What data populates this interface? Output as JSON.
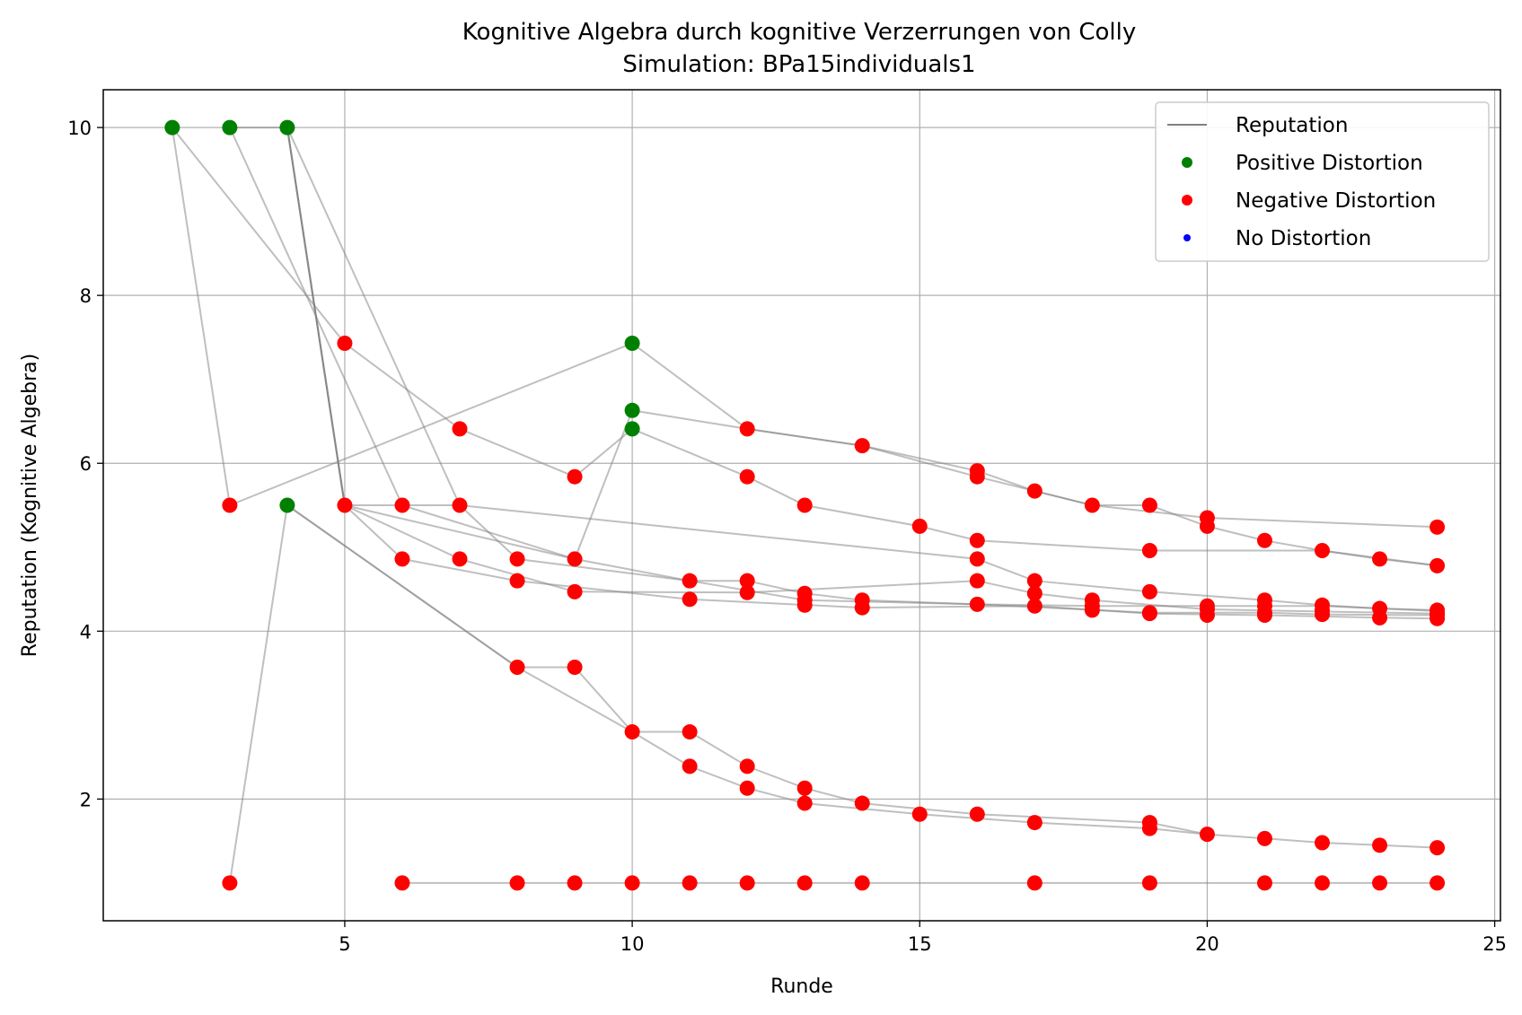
{
  "chart_data": {
    "type": "line",
    "title": "Kognitive Algebra durch kognitive Verzerrungen von Colly",
    "subtitle": "Simulation: BPa15individuals1",
    "xlabel": "Runde",
    "ylabel": "Reputation (Kognitive Algebra)",
    "xlim": [
      0.8,
      25.1
    ],
    "ylim": [
      0.55,
      10.45
    ],
    "xticks": [
      5,
      10,
      15,
      20,
      25
    ],
    "yticks": [
      2,
      4,
      6,
      8,
      10
    ],
    "grid": true,
    "legend_position": "top-right",
    "legend": [
      {
        "label": "Reputation",
        "kind": "line",
        "color": "#808080"
      },
      {
        "label": "Positive Distortion",
        "kind": "marker",
        "color": "#008000"
      },
      {
        "label": "Negative Distortion",
        "kind": "marker",
        "color": "#ff0000"
      },
      {
        "label": "No Distortion",
        "kind": "marker",
        "color": "#0000ff"
      }
    ],
    "colors": {
      "line": "#808080",
      "positive": "#008000",
      "negative": "#ff0000",
      "none": "#0000ff"
    },
    "lines": [
      [
        [
          2,
          10
        ],
        [
          5,
          7.43
        ],
        [
          7,
          6.41
        ],
        [
          9,
          5.84
        ],
        [
          10,
          6.41
        ],
        [
          12,
          5.84
        ],
        [
          13,
          5.5
        ],
        [
          15,
          5.25
        ],
        [
          16,
          5.08
        ],
        [
          19,
          4.96
        ],
        [
          22,
          4.96
        ],
        [
          24,
          4.78
        ]
      ],
      [
        [
          2,
          10
        ],
        [
          3,
          5.5
        ],
        [
          10,
          7.43
        ],
        [
          12,
          6.41
        ],
        [
          14,
          6.21
        ],
        [
          16,
          5.91
        ],
        [
          17,
          5.67
        ],
        [
          18,
          5.5
        ],
        [
          19,
          5.5
        ],
        [
          20,
          5.25
        ],
        [
          21,
          5.08
        ],
        [
          22,
          4.96
        ],
        [
          23,
          4.86
        ],
        [
          24,
          4.78
        ]
      ],
      [
        [
          3,
          10
        ],
        [
          4,
          10
        ],
        [
          5,
          5.5
        ],
        [
          9,
          4.86
        ],
        [
          10,
          6.63
        ],
        [
          12,
          6.41
        ],
        [
          14,
          6.21
        ],
        [
          16,
          5.84
        ],
        [
          18,
          5.5
        ],
        [
          20,
          5.35
        ],
        [
          24,
          5.24
        ]
      ],
      [
        [
          3,
          10
        ],
        [
          6,
          5.5
        ],
        [
          9,
          4.86
        ],
        [
          11,
          4.6
        ],
        [
          12,
          4.6
        ],
        [
          13,
          4.45
        ],
        [
          14,
          4.37
        ],
        [
          16,
          4.32
        ],
        [
          18,
          4.3
        ],
        [
          20,
          4.3
        ],
        [
          22,
          4.3
        ],
        [
          24,
          4.24
        ]
      ],
      [
        [
          4,
          10
        ],
        [
          7,
          5.5
        ],
        [
          8,
          4.86
        ],
        [
          11,
          4.6
        ],
        [
          13,
          4.37
        ],
        [
          16,
          4.32
        ],
        [
          19,
          4.22
        ],
        [
          21,
          4.22
        ],
        [
          22,
          4.2
        ],
        [
          24,
          4.19
        ]
      ],
      [
        [
          4,
          10
        ],
        [
          5,
          5.5
        ],
        [
          6,
          4.86
        ],
        [
          8,
          4.6
        ],
        [
          11,
          4.38
        ],
        [
          14,
          4.28
        ],
        [
          17,
          4.3
        ],
        [
          19,
          4.21
        ],
        [
          21,
          4.19
        ],
        [
          23,
          4.16
        ],
        [
          24,
          4.15
        ]
      ],
      [
        [
          4,
          10
        ],
        [
          5,
          5.5
        ],
        [
          7,
          5.5
        ],
        [
          16,
          4.86
        ],
        [
          17,
          4.6
        ],
        [
          19,
          4.47
        ],
        [
          21,
          4.37
        ],
        [
          22,
          4.31
        ],
        [
          23,
          4.27
        ],
        [
          24,
          4.25
        ]
      ],
      [
        [
          4,
          10
        ],
        [
          5,
          5.5
        ],
        [
          7,
          4.86
        ],
        [
          9,
          4.47
        ],
        [
          12,
          4.46
        ],
        [
          16,
          4.6
        ],
        [
          17,
          4.45
        ],
        [
          18,
          4.37
        ],
        [
          20,
          4.26
        ],
        [
          24,
          4.21
        ]
      ],
      [
        [
          3,
          1.0
        ],
        [
          4,
          5.5
        ],
        [
          8,
          3.57
        ],
        [
          9,
          3.57
        ],
        [
          10,
          2.8
        ],
        [
          11,
          2.8
        ],
        [
          12,
          2.39
        ],
        [
          13,
          2.13
        ],
        [
          14,
          1.95
        ],
        [
          16,
          1.82
        ],
        [
          19,
          1.72
        ],
        [
          20,
          1.58
        ],
        [
          21,
          1.53
        ],
        [
          22,
          1.48
        ],
        [
          23,
          1.45
        ],
        [
          24,
          1.42
        ]
      ],
      [
        [
          4,
          5.5
        ],
        [
          8,
          3.57
        ],
        [
          10,
          2.8
        ],
        [
          11,
          2.39
        ],
        [
          12,
          2.13
        ],
        [
          13,
          1.95
        ],
        [
          15,
          1.82
        ],
        [
          17,
          1.72
        ],
        [
          19,
          1.65
        ],
        [
          20,
          1.58
        ]
      ],
      [
        [
          6,
          1.0
        ],
        [
          8,
          1.0
        ],
        [
          9,
          1.0
        ],
        [
          10,
          1.0
        ],
        [
          11,
          1.0
        ],
        [
          12,
          1.0
        ],
        [
          13,
          1.0
        ],
        [
          14,
          1.0
        ],
        [
          17,
          1.0
        ],
        [
          19,
          1.0
        ],
        [
          21,
          1.0
        ],
        [
          22,
          1.0
        ],
        [
          23,
          1.0
        ],
        [
          24,
          1.0
        ]
      ]
    ],
    "green_points": [
      [
        2,
        10
      ],
      [
        3,
        10
      ],
      [
        4,
        10
      ],
      [
        4,
        5.5
      ],
      [
        10,
        7.43
      ],
      [
        10,
        6.63
      ],
      [
        10,
        6.41
      ]
    ],
    "red_points": [
      [
        3,
        5.5
      ],
      [
        3,
        1.0
      ],
      [
        5,
        7.43
      ],
      [
        5,
        5.5
      ],
      [
        6,
        5.5
      ],
      [
        6,
        4.86
      ],
      [
        6,
        1.0
      ],
      [
        7,
        6.41
      ],
      [
        7,
        5.5
      ],
      [
        7,
        4.86
      ],
      [
        8,
        4.86
      ],
      [
        8,
        4.6
      ],
      [
        8,
        3.57
      ],
      [
        8,
        1.0
      ],
      [
        9,
        5.84
      ],
      [
        9,
        4.86
      ],
      [
        9,
        4.47
      ],
      [
        9,
        3.57
      ],
      [
        9,
        1.0
      ],
      [
        10,
        2.8
      ],
      [
        10,
        1.0
      ],
      [
        11,
        4.6
      ],
      [
        11,
        4.38
      ],
      [
        11,
        2.8
      ],
      [
        11,
        2.39
      ],
      [
        11,
        1.0
      ],
      [
        12,
        6.41
      ],
      [
        12,
        5.84
      ],
      [
        12,
        4.6
      ],
      [
        12,
        4.46
      ],
      [
        12,
        2.39
      ],
      [
        12,
        2.13
      ],
      [
        12,
        1.0
      ],
      [
        13,
        5.5
      ],
      [
        13,
        4.45
      ],
      [
        13,
        4.37
      ],
      [
        13,
        4.31
      ],
      [
        13,
        2.13
      ],
      [
        13,
        1.95
      ],
      [
        13,
        1.0
      ],
      [
        14,
        6.21
      ],
      [
        14,
        4.37
      ],
      [
        14,
        4.28
      ],
      [
        14,
        1.95
      ],
      [
        14,
        1.0
      ],
      [
        15,
        5.25
      ],
      [
        15,
        1.82
      ],
      [
        16,
        5.91
      ],
      [
        16,
        5.84
      ],
      [
        16,
        5.08
      ],
      [
        16,
        4.86
      ],
      [
        16,
        4.6
      ],
      [
        16,
        4.32
      ],
      [
        16,
        1.82
      ],
      [
        17,
        5.67
      ],
      [
        17,
        4.6
      ],
      [
        17,
        4.45
      ],
      [
        17,
        4.3
      ],
      [
        17,
        1.72
      ],
      [
        17,
        1.0
      ],
      [
        18,
        5.5
      ],
      [
        18,
        4.37
      ],
      [
        18,
        4.3
      ],
      [
        18,
        4.25
      ],
      [
        19,
        5.5
      ],
      [
        19,
        4.96
      ],
      [
        19,
        4.47
      ],
      [
        19,
        4.22
      ],
      [
        19,
        4.21
      ],
      [
        19,
        1.72
      ],
      [
        19,
        1.65
      ],
      [
        19,
        1.0
      ],
      [
        20,
        5.35
      ],
      [
        20,
        5.25
      ],
      [
        20,
        4.3
      ],
      [
        20,
        4.26
      ],
      [
        20,
        4.19
      ],
      [
        20,
        1.58
      ],
      [
        21,
        5.08
      ],
      [
        21,
        4.37
      ],
      [
        21,
        4.3
      ],
      [
        21,
        4.22
      ],
      [
        21,
        4.19
      ],
      [
        21,
        1.53
      ],
      [
        21,
        1.0
      ],
      [
        22,
        4.96
      ],
      [
        22,
        4.31
      ],
      [
        22,
        4.25
      ],
      [
        22,
        4.2
      ],
      [
        22,
        1.48
      ],
      [
        22,
        1.0
      ],
      [
        23,
        4.86
      ],
      [
        23,
        4.27
      ],
      [
        23,
        4.16
      ],
      [
        23,
        1.45
      ],
      [
        23,
        1.0
      ],
      [
        24,
        5.24
      ],
      [
        24,
        4.78
      ],
      [
        24,
        4.25
      ],
      [
        24,
        4.21
      ],
      [
        24,
        4.19
      ],
      [
        24,
        4.15
      ],
      [
        24,
        1.42
      ],
      [
        24,
        1.0
      ]
    ]
  }
}
